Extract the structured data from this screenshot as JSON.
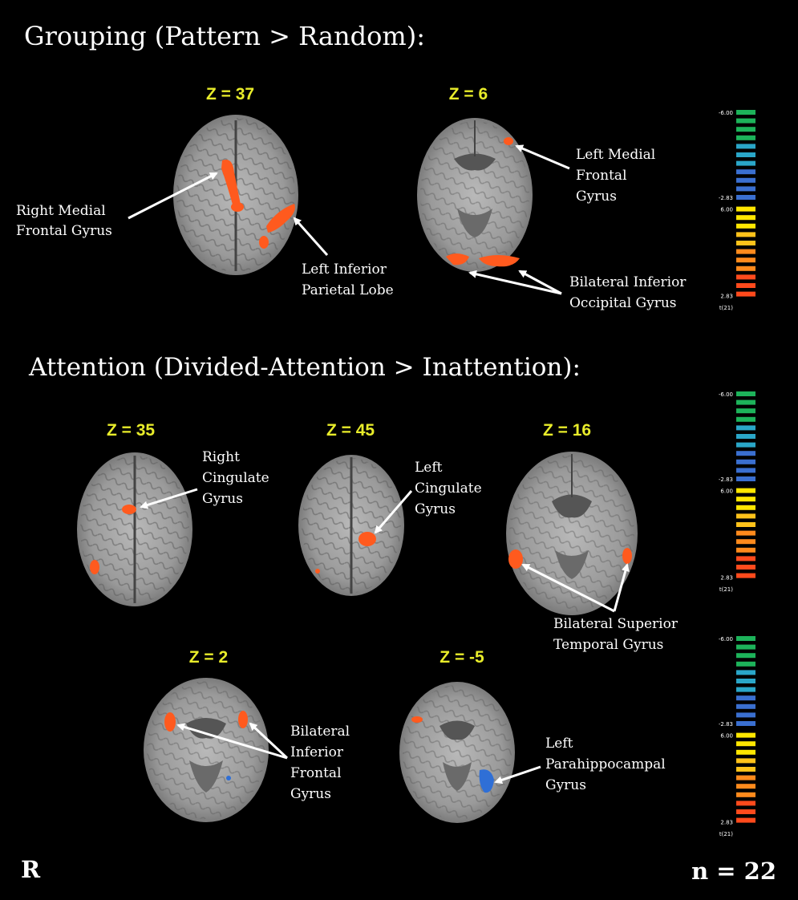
{
  "sections": {
    "grouping_title": "Grouping (Pattern > Random):",
    "attention_title": "Attention (Divided-Attention > Inattention):"
  },
  "slices": {
    "g37": "Z = 37",
    "g6": "Z = 6",
    "a35": "Z = 35",
    "a45": "Z = 45",
    "a16": "Z = 16",
    "a2": "Z = 2",
    "am5": "Z = -5"
  },
  "labels": {
    "rmfg": [
      "Right Medial",
      "Frontal Gyrus"
    ],
    "lipl": [
      "Left Inferior",
      "Parietal Lobe"
    ],
    "lmfg": [
      "Left Medial",
      "Frontal",
      "Gyrus"
    ],
    "biog": [
      "Bilateral Inferior",
      "Occipital Gyrus"
    ],
    "rcg": [
      "Right",
      "Cingulate",
      "Gyrus"
    ],
    "lcg": [
      "Left",
      "Cingulate",
      "Gyrus"
    ],
    "bstg": [
      "Bilateral Superior",
      "Temporal Gyrus"
    ],
    "bifg": [
      "Bilateral",
      "Inferior",
      "Frontal",
      "Gyrus"
    ],
    "lphg": [
      "Left",
      "Parahippocampal",
      "Gyrus"
    ]
  },
  "colorbar": {
    "ticks": [
      "-6.00",
      "-2.83",
      "6.00",
      "2.83",
      "t(21)"
    ],
    "colors": {
      "green": "#1db35a",
      "blue": "#3a6fd0",
      "yellow": "#ffe600",
      "orange": "#ff8a1c",
      "red": "#ff4a1c"
    }
  },
  "footer": {
    "orientation": "R",
    "n": "n = 22"
  },
  "colors": {
    "activation": "#ff5a1e",
    "deactivation": "#2f6fd6",
    "zlabel": "#e8ec2a",
    "text": "#ffffff"
  }
}
